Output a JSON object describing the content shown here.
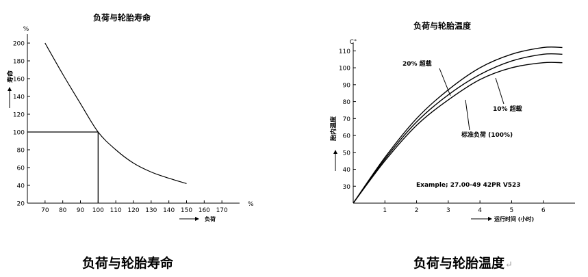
{
  "chart_data": [
    {
      "type": "line",
      "title": "负荷与轮胎寿命",
      "caption": "负荷与轮胎寿命",
      "xlabel": "负荷",
      "x_unit": "%",
      "ylabel": "寿命",
      "y_unit": "%",
      "xlim": [
        60,
        180
      ],
      "ylim": [
        20,
        210
      ],
      "x_ticks": [
        "70",
        "80",
        "90",
        "100",
        "110",
        "120",
        "130",
        "140",
        "150",
        "160",
        "170"
      ],
      "y_ticks": [
        "20",
        "40",
        "60",
        "80",
        "100",
        "120",
        "140",
        "160",
        "180",
        "200"
      ],
      "grid": false,
      "series": [
        {
          "values": [
            [
              70,
              200
            ],
            [
              80,
              165
            ],
            [
              90,
              132
            ],
            [
              100,
              100
            ],
            [
              110,
              80
            ],
            [
              120,
              65
            ],
            [
              130,
              55
            ],
            [
              140,
              48
            ],
            [
              150,
              42
            ]
          ]
        }
      ],
      "reference": {
        "x": 100,
        "y": 100
      }
    },
    {
      "type": "line",
      "title": "负荷与轮胎温度",
      "caption": "负荷与轮胎温度",
      "xlabel": "运行时间 (小时)",
      "ylabel": "胎内温度",
      "y_unit": "C°",
      "xlim": [
        0,
        7
      ],
      "ylim": [
        20,
        115
      ],
      "x_ticks": [
        "1",
        "2",
        "3",
        "4",
        "5",
        "6"
      ],
      "y_ticks": [
        "30",
        "40",
        "50",
        "60",
        "70",
        "80",
        "90",
        "100",
        "110"
      ],
      "grid": false,
      "annotation": "Example; 27.00-49  42PR  V523",
      "series": [
        {
          "name": "20% 超载",
          "values": [
            [
              0,
              20
            ],
            [
              1,
              47
            ],
            [
              2,
              70
            ],
            [
              3,
              87
            ],
            [
              4,
              100
            ],
            [
              5,
              108
            ],
            [
              6,
              112
            ],
            [
              6.6,
              112
            ]
          ]
        },
        {
          "name": "10% 超载",
          "values": [
            [
              0,
              20
            ],
            [
              1,
              46
            ],
            [
              2,
              68
            ],
            [
              3,
              84
            ],
            [
              4,
              96
            ],
            [
              5,
              104
            ],
            [
              6,
              108
            ],
            [
              6.6,
              108
            ]
          ]
        },
        {
          "name": "标准负荷 (100%)",
          "values": [
            [
              0,
              20
            ],
            [
              1,
              45
            ],
            [
              2,
              66
            ],
            [
              3,
              81
            ],
            [
              4,
              93
            ],
            [
              5,
              100
            ],
            [
              6,
              103
            ],
            [
              6.6,
              103
            ]
          ]
        }
      ]
    }
  ]
}
